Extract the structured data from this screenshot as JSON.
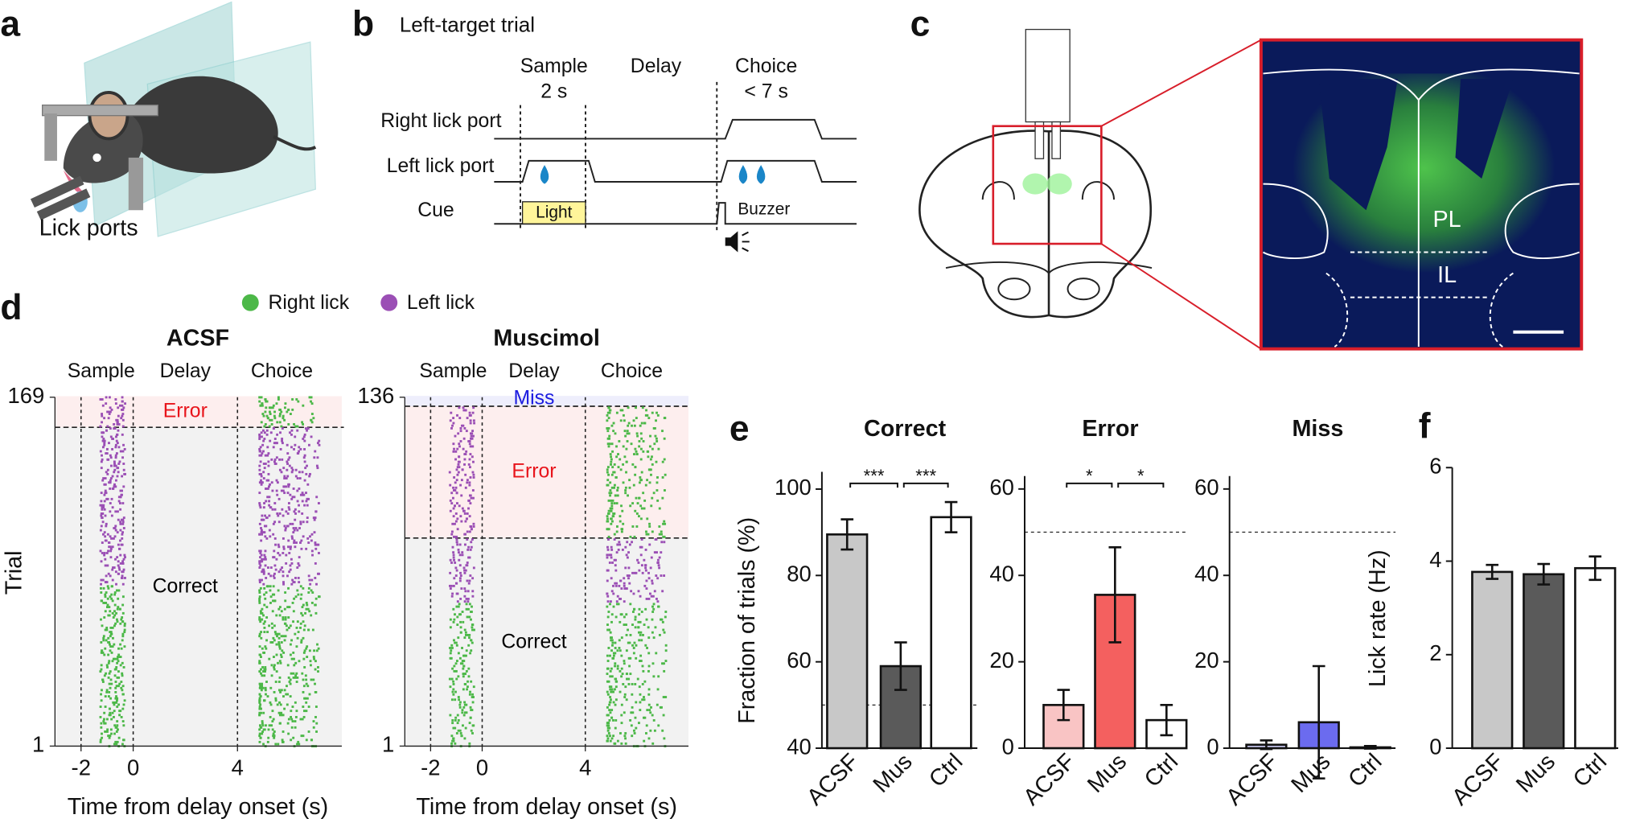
{
  "panel_labels": [
    "a",
    "b",
    "c",
    "d",
    "e",
    "f"
  ],
  "panel_a": {
    "caption": "Lick ports"
  },
  "panel_b": {
    "title": "Left-target trial",
    "phases": [
      {
        "name": "Sample",
        "duration": "2 s"
      },
      {
        "name": "Delay"
      },
      {
        "name": "Choice",
        "duration": "< 7 s"
      }
    ],
    "rows": [
      "Right lick port",
      "Left lick port",
      "Cue"
    ],
    "cues": [
      "Light",
      "Buzzer"
    ]
  },
  "panel_c": {
    "regions": [
      "PL",
      "IL"
    ]
  },
  "panel_d": {
    "legend": [
      {
        "name": "Right lick",
        "color": "#4cb848"
      },
      {
        "name": "Left lick",
        "color": "#9b4fb5"
      }
    ],
    "rasters": [
      {
        "title": "ACSF",
        "phases": [
          "Sample",
          "Delay",
          "Choice"
        ],
        "ylabel": "Trial",
        "xlabel": "Time from delay onset (s)",
        "ylim": [
          1,
          169
        ],
        "yticks": [
          1,
          169
        ],
        "xlim": [
          -3,
          8
        ],
        "xticks": [
          -2,
          0,
          4
        ],
        "blocks": [
          {
            "name": "Error",
            "range": [
              155,
              169
            ],
            "shade": "#fdeeee",
            "color": "#e8141b"
          },
          {
            "name": "Correct",
            "range": [
              1,
              154
            ],
            "shade": "#f2f2f2",
            "color": "#000000"
          }
        ],
        "lick_bands": [
          {
            "range": [
              155,
              169
            ],
            "sample_color": "#9b4fb5",
            "choice_color": "#4cb848"
          },
          {
            "range": [
              79,
              154
            ],
            "sample_color": "#9b4fb5",
            "choice_color": "#9b4fb5"
          },
          {
            "range": [
              1,
              78
            ],
            "sample_color": "#4cb848",
            "choice_color": "#4cb848"
          }
        ]
      },
      {
        "title": "Muscimol",
        "phases": [
          "Sample",
          "Delay",
          "Choice"
        ],
        "xlabel": "Time from delay onset (s)",
        "ylim": [
          1,
          136
        ],
        "yticks": [
          1,
          136
        ],
        "xlim": [
          -3,
          8
        ],
        "xticks": [
          -2,
          0,
          4
        ],
        "blocks": [
          {
            "name": "Miss",
            "range": [
              133,
              136
            ],
            "shade": "#eeeefc",
            "color": "#1c1ce0"
          },
          {
            "name": "Error",
            "range": [
              82,
              132
            ],
            "shade": "#fdeeee",
            "color": "#e8141b"
          },
          {
            "name": "Correct",
            "range": [
              1,
              81
            ],
            "shade": "#f2f2f2",
            "color": "#000000"
          }
        ],
        "lick_bands": [
          {
            "range": [
              82,
              132
            ],
            "sample_color": "#9b4fb5",
            "choice_color": "#4cb848"
          },
          {
            "range": [
              57,
              81
            ],
            "sample_color": "#9b4fb5",
            "choice_color": "#9b4fb5"
          },
          {
            "range": [
              1,
              56
            ],
            "sample_color": "#4cb848",
            "choice_color": "#4cb848"
          }
        ]
      }
    ]
  },
  "chart_data": [
    {
      "type": "bar",
      "title": "Correct",
      "ylabel": "Fraction of trials (%)",
      "categories": [
        "ACSF",
        "Mus",
        "Ctrl"
      ],
      "values": [
        89.5,
        59,
        93.5
      ],
      "errors": [
        3.5,
        5.5,
        3.5
      ],
      "colors": [
        "#c8c8c8",
        "#5a5a5a",
        "#ffffff"
      ],
      "ylim": [
        40,
        104
      ],
      "yticks": [
        40,
        60,
        80,
        100
      ],
      "reference_line": 50,
      "significance": [
        {
          "label": "***",
          "pair": [
            0,
            1
          ]
        },
        {
          "label": "***",
          "pair": [
            1,
            2
          ]
        }
      ]
    },
    {
      "type": "bar",
      "title": "Error",
      "categories": [
        "ACSF",
        "Mus",
        "Ctrl"
      ],
      "values": [
        10,
        35.5,
        6.5
      ],
      "errors": [
        3.5,
        11,
        3.5
      ],
      "colors": [
        "#f9c4c4",
        "#f4605f",
        "#ffffff"
      ],
      "ylim": [
        0,
        63
      ],
      "yticks": [
        0,
        20,
        40,
        60
      ],
      "reference_line": 50,
      "significance": [
        {
          "label": "*",
          "pair": [
            0,
            1
          ]
        },
        {
          "label": "*",
          "pair": [
            1,
            2
          ]
        }
      ]
    },
    {
      "type": "bar",
      "title": "Miss",
      "categories": [
        "ACSF",
        "Mus",
        "Ctrl"
      ],
      "values": [
        0.8,
        6,
        0.2
      ],
      "errors": [
        1,
        13,
        0.3
      ],
      "colors": [
        "#c8c8f0",
        "#6b6bef",
        "#ffffff"
      ],
      "ylim": [
        0,
        63
      ],
      "yticks": [
        0,
        20,
        40,
        60
      ],
      "reference_line": 50
    },
    {
      "type": "bar",
      "ylabel": "Lick rate (Hz)",
      "categories": [
        "ACSF",
        "Mus",
        "Ctrl"
      ],
      "values": [
        3.77,
        3.72,
        3.85
      ],
      "errors": [
        0.15,
        0.22,
        0.25
      ],
      "colors": [
        "#c8c8c8",
        "#5a5a5a",
        "#ffffff"
      ],
      "ylim": [
        0,
        6
      ],
      "yticks": [
        0,
        2,
        4,
        6
      ]
    }
  ]
}
